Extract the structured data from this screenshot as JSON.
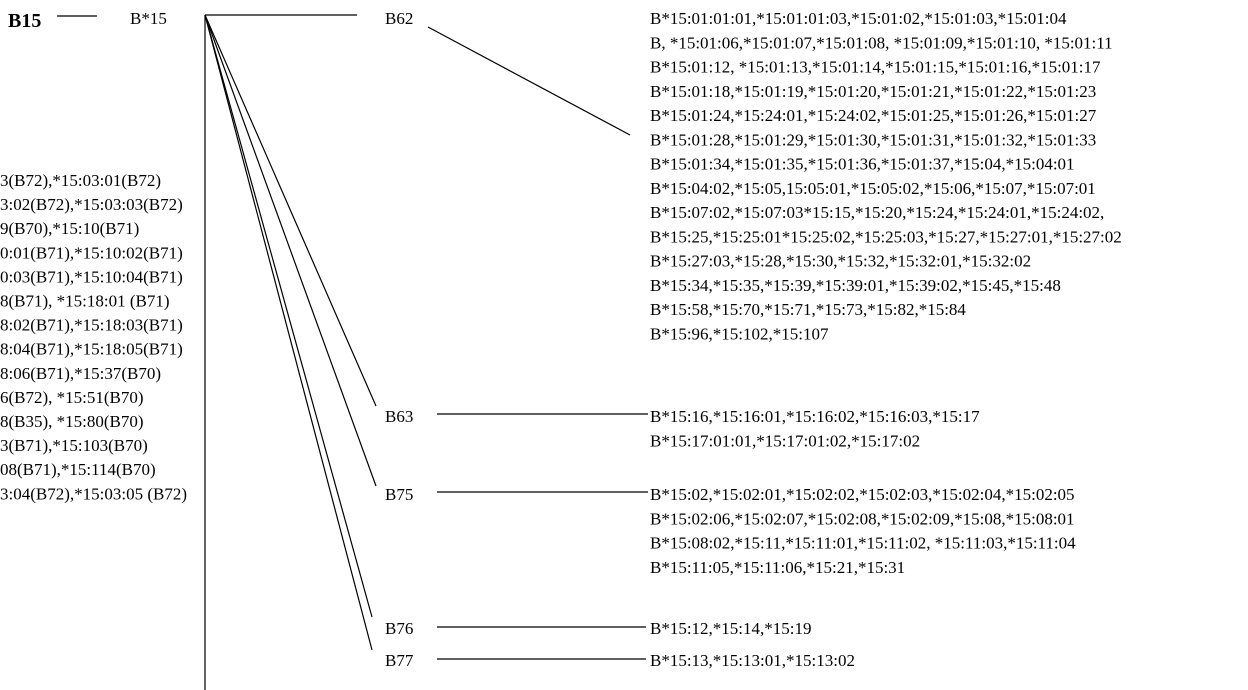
{
  "root_label": "B15",
  "root_allele": "B*15",
  "branches": [
    {
      "label": "B62",
      "alleles": [
        "B*15:01:01:01,*15:01:01:03,*15:01:02,*15:01:03,*15:01:04",
        "B, *15:01:06,*15:01:07,*15:01:08, *15:01:09,*15:01:10, *15:01:11",
        "B*15:01:12, *15:01:13,*15:01:14,*15:01:15,*15:01:16,*15:01:17",
        "B*15:01:18,*15:01:19,*15:01:20,*15:01:21,*15:01:22,*15:01:23",
        "B*15:01:24,*15:24:01,*15:24:02,*15:01:25,*15:01:26,*15:01:27",
        "B*15:01:28,*15:01:29,*15:01:30,*15:01:31,*15:01:32,*15:01:33",
        "B*15:01:34,*15:01:35,*15:01:36,*15:01:37,*15:04,*15:04:01",
        "B*15:04:02,*15:05,15:05:01,*15:05:02,*15:06,*15:07,*15:07:01",
        "B*15:07:02,*15:07:03*15:15,*15:20,*15:24,*15:24:01,*15:24:02,",
        "B*15:25,*15:25:01*15:25:02,*15:25:03,*15:27,*15:27:01,*15:27:02",
        "B*15:27:03,*15:28,*15:30,*15:32,*15:32:01,*15:32:02",
        "B*15:34,*15:35,*15:39,*15:39:01,*15:39:02,*15:45,*15:48",
        "B*15:58,*15:70,*15:71,*15:73,*15:82,*15:84",
        "B*15:96,*15:102,*15:107"
      ]
    },
    {
      "label": "B63",
      "alleles": [
        "B*15:16,*15:16:01,*15:16:02,*15:16:03,*15:17",
        "B*15:17:01:01,*15:17:01:02,*15:17:02"
      ]
    },
    {
      "label": "B75",
      "alleles": [
        "B*15:02,*15:02:01,*15:02:02,*15:02:03,*15:02:04,*15:02:05",
        "B*15:02:06,*15:02:07,*15:02:08,*15:02:09,*15:08,*15:08:01",
        "B*15:08:02,*15:11,*15:11:01,*15:11:02, *15:11:03,*15:11:04",
        "B*15:11:05,*15:11:06,*15:21,*15:31"
      ]
    },
    {
      "label": "B76",
      "alleles": [
        "B*15:12,*15:14,*15:19"
      ]
    },
    {
      "label": "B77",
      "alleles": [
        "B*15:13,*15:13:01,*15:13:02"
      ]
    }
  ],
  "left_column": [
    "3(B72),*15:03:01(B72)",
    "3:02(B72),*15:03:03(B72)",
    "9(B70),*15:10(B71)",
    "0:01(B71),*15:10:02(B71)",
    "0:03(B71),*15:10:04(B71)",
    "8(B71), *15:18:01 (B71)",
    "8:02(B71),*15:18:03(B71)",
    "8:04(B71),*15:18:05(B71)",
    "8:06(B71),*15:37(B70)",
    "6(B72), *15:51(B70)",
    "8(B35), *15:80(B70)",
    "3(B71),*15:103(B70)",
    "08(B71),*15:114(B70)",
    "3:04(B72),*15:03:05 (B72)"
  ]
}
